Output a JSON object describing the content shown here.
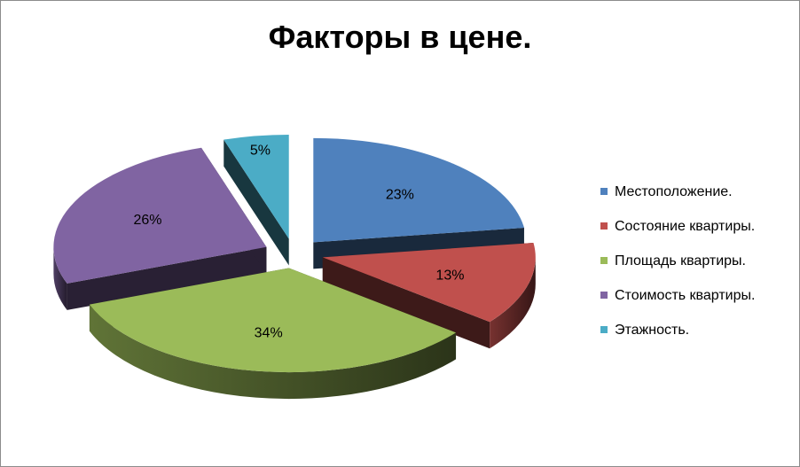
{
  "chart_data": {
    "type": "pie",
    "title": "Факторы в цене.",
    "three_d": true,
    "exploded": true,
    "legend_position": "right",
    "slices": [
      {
        "label": "Местоположение.",
        "value": 23,
        "display": "23%",
        "color": "#4F81BD"
      },
      {
        "label": "Состояние квартиры.",
        "value": 13,
        "display": "13%",
        "color": "#C0504D"
      },
      {
        "label": "Площадь квартиры.",
        "value": 34,
        "display": "34%",
        "color": "#9BBB59"
      },
      {
        "label": "Стоимость квартиры.",
        "value": 26,
        "display": "26%",
        "color": "#8064A2"
      },
      {
        "label": "Этажность.",
        "value": 5,
        "display": "5%",
        "color": "#4BACC6"
      }
    ]
  }
}
